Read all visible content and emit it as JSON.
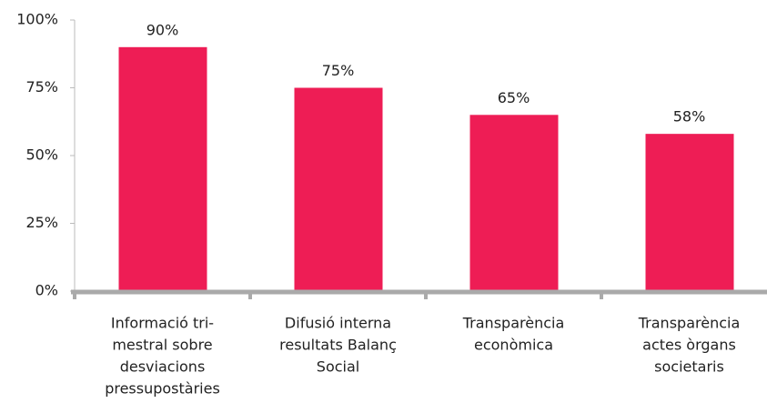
{
  "chart_data": {
    "type": "bar",
    "categories": [
      [
        "Informació tri-",
        "mestral sobre",
        "desviacions",
        "pressupostàries"
      ],
      [
        "Difusió interna",
        "resultats Balanç",
        "Social"
      ],
      [
        "Transparència",
        "econòmica"
      ],
      [
        "Transparència",
        "actes òrgans",
        "societaris"
      ]
    ],
    "values": [
      90,
      75,
      65,
      58
    ],
    "value_labels": [
      "90%",
      "75%",
      "65%",
      "58%"
    ],
    "color": "#ee1d55",
    "ylim": [
      0,
      100
    ],
    "yticks": [
      {
        "value": 0,
        "label": "0%"
      },
      {
        "value": 25,
        "label": "25%"
      },
      {
        "value": 50,
        "label": "50%"
      },
      {
        "value": 75,
        "label": "75%"
      },
      {
        "value": 100,
        "label": "100%"
      }
    ],
    "grid": false
  }
}
